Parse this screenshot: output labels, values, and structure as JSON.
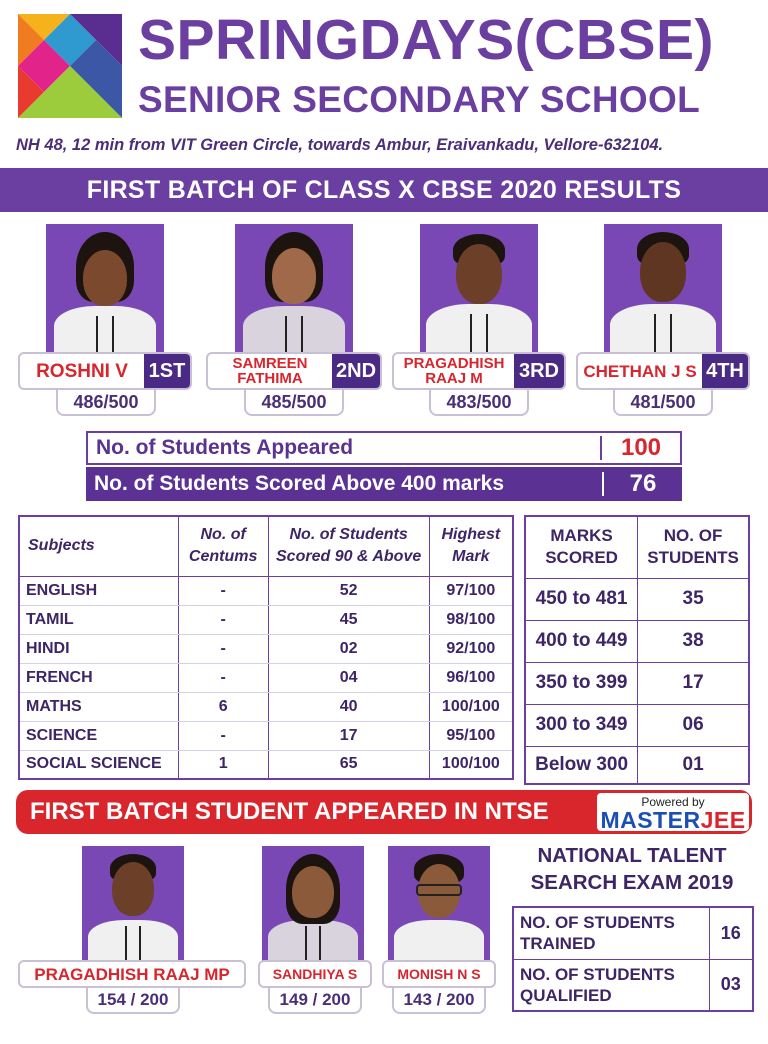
{
  "header": {
    "title_line1": "SPRINGDAYS(CBSE)",
    "title_line2": "SENIOR SECONDARY SCHOOL",
    "address": "NH 48, 12 min from VIT Green Circle, towards Ambur, Eraivankadu,  Vellore-632104."
  },
  "banner": "FIRST BATCH OF CLASS X CBSE 2020 RESULTS",
  "toppers": [
    {
      "name": "ROSHNI V",
      "rank": "1ST",
      "score": "486/500"
    },
    {
      "name": "SAMREEN FATHIMA",
      "rank": "2ND",
      "score": "485/500"
    },
    {
      "name": "PRAGADHISH RAAJ M",
      "rank": "3RD",
      "score": "483/500"
    },
    {
      "name": "CHETHAN J S",
      "rank": "4TH",
      "score": "481/500"
    }
  ],
  "stats": [
    {
      "label": "No. of Students Appeared",
      "value": "100"
    },
    {
      "label": "No. of Students Scored Above 400 marks",
      "value": "76"
    }
  ],
  "subjects_table": {
    "headers": [
      "Subjects",
      "No. of Centums",
      "No. of Students Scored 90 & Above",
      "Highest Mark"
    ],
    "rows": [
      [
        "ENGLISH",
        "-",
        "52",
        "97/100"
      ],
      [
        "TAMIL",
        "-",
        "45",
        "98/100"
      ],
      [
        "HINDI",
        "-",
        "02",
        "92/100"
      ],
      [
        "FRENCH",
        "-",
        "04",
        "96/100"
      ],
      [
        "MATHS",
        "6",
        "40",
        "100/100"
      ],
      [
        "SCIENCE",
        "-",
        "17",
        "95/100"
      ],
      [
        "SOCIAL SCIENCE",
        "1",
        "65",
        "100/100"
      ]
    ]
  },
  "marks_table": {
    "headers": [
      "MARKS SCORED",
      "NO. OF STUDENTS"
    ],
    "rows": [
      [
        "450 to 481",
        "35"
      ],
      [
        "400 to 449",
        "38"
      ],
      [
        "350 to 399",
        "17"
      ],
      [
        "300 to 349",
        "06"
      ],
      [
        "Below 300",
        "01"
      ]
    ]
  },
  "ntse": {
    "banner": "FIRST BATCH STUDENT APPEARED IN NTSE",
    "powered_by": "Powered by",
    "brand_part1": "MASTER",
    "brand_part2": "JEE",
    "heading_line1": "NATIONAL TALENT",
    "heading_line2": "SEARCH EXAM 2019",
    "students": [
      {
        "name": "PRAGADHISH RAAJ MP",
        "score": "154 / 200"
      },
      {
        "name": "SANDHIYA S",
        "score": "149 / 200"
      },
      {
        "name": "MONISH N S",
        "score": "143 / 200"
      }
    ],
    "table": [
      {
        "label": "NO. OF STUDENTS TRAINED",
        "value": "16"
      },
      {
        "label": "NO. OF STUDENTS QUALIFIED",
        "value": "03"
      }
    ]
  },
  "colors": {
    "purple": "#6b3fa2",
    "red": "#d7262d",
    "dark_purple": "#4b2a86"
  }
}
